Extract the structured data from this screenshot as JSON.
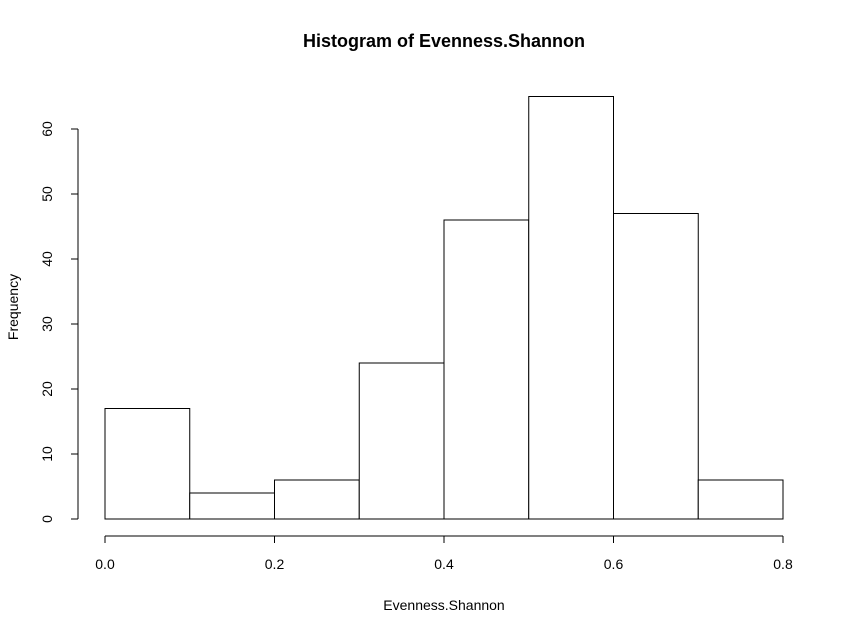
{
  "chart_data": {
    "type": "bar",
    "title": "Histogram of Evenness.Shannon",
    "xlabel": "Evenness.Shannon",
    "ylabel": "Frequency",
    "bins": [
      {
        "start": 0.0,
        "end": 0.1,
        "count": 17
      },
      {
        "start": 0.1,
        "end": 0.2,
        "count": 4
      },
      {
        "start": 0.2,
        "end": 0.3,
        "count": 6
      },
      {
        "start": 0.3,
        "end": 0.4,
        "count": 24
      },
      {
        "start": 0.4,
        "end": 0.5,
        "count": 46
      },
      {
        "start": 0.5,
        "end": 0.6,
        "count": 65
      },
      {
        "start": 0.6,
        "end": 0.7,
        "count": 47
      },
      {
        "start": 0.7,
        "end": 0.8,
        "count": 6
      }
    ],
    "xlim": [
      0.0,
      0.8
    ],
    "ylim": [
      0,
      65
    ],
    "x_ticks": [
      "0.0",
      "0.2",
      "0.4",
      "0.6",
      "0.8"
    ],
    "x_tick_values": [
      0.0,
      0.2,
      0.4,
      0.6,
      0.8
    ],
    "y_ticks": [
      "0",
      "10",
      "20",
      "30",
      "40",
      "50",
      "60"
    ],
    "y_tick_values": [
      0,
      10,
      20,
      30,
      40,
      50,
      60
    ],
    "grid": false,
    "legend": "none",
    "colors": {
      "bar_fill": "#ffffff",
      "bar_stroke": "#000000",
      "axis": "#000000",
      "background": "#ffffff"
    }
  }
}
